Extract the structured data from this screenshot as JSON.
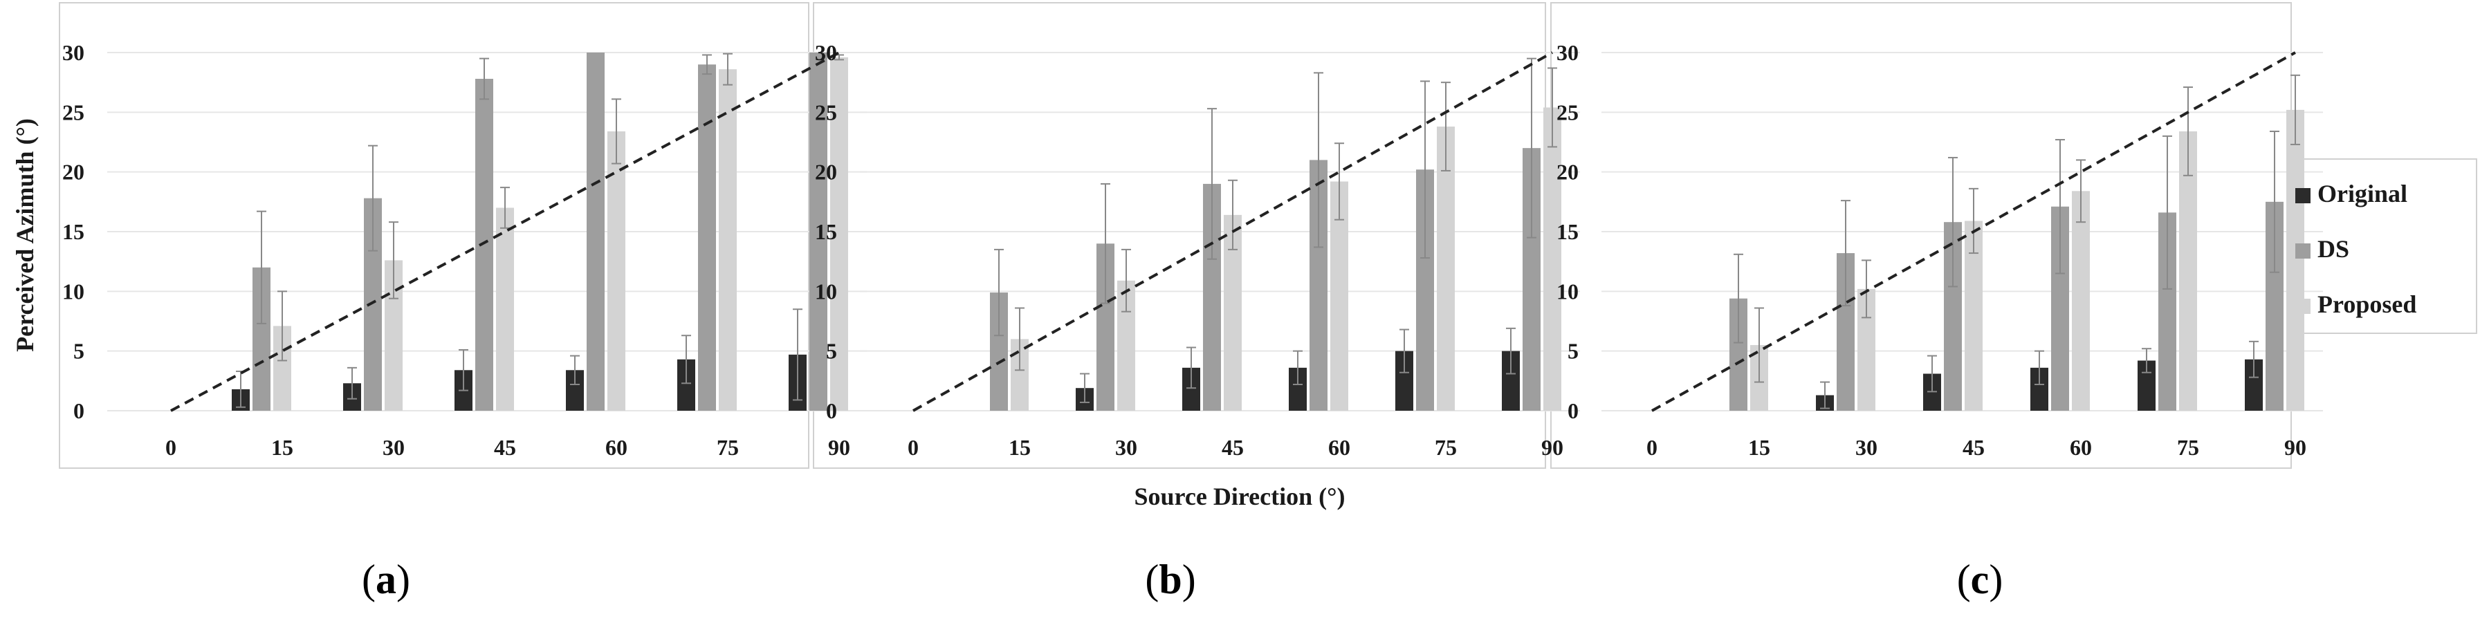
{
  "figure": {
    "y_axis_title": "Perceived Azimuth (°)",
    "x_axis_title": "Source Direction (°)",
    "legend": [
      "Original",
      "DS",
      "Proposed"
    ],
    "panel_labels": [
      {
        "open": "(",
        "letter": "a",
        "close": ")"
      },
      {
        "open": "(",
        "letter": "b",
        "close": ")"
      },
      {
        "open": "(",
        "letter": "c",
        "close": ")"
      }
    ]
  },
  "colors": {
    "Original": "#2b2b2b",
    "DS": "#9e9e9e",
    "Proposed": "#d3d3d3",
    "error_bar": "#888888",
    "grid": "#e6e6e6",
    "reference_line": "#222222",
    "frame": "#d0d0d0"
  },
  "chart_data": [
    {
      "type": "bar",
      "panel": "a",
      "categories": [
        "0",
        "15",
        "30",
        "45",
        "60",
        "75",
        "90"
      ],
      "ylim": [
        0,
        30
      ],
      "yticks": [
        0,
        5,
        10,
        15,
        20,
        25,
        30
      ],
      "reference_line": {
        "from": [
          0,
          0
        ],
        "to": [
          90,
          30
        ],
        "style": "dashed"
      },
      "series": [
        {
          "name": "Original",
          "values": [
            null,
            1.8,
            2.3,
            3.4,
            3.4,
            4.3,
            4.7
          ],
          "errors": [
            null,
            1.5,
            1.3,
            1.7,
            1.2,
            2.0,
            3.8
          ]
        },
        {
          "name": "DS",
          "values": [
            null,
            12.0,
            17.8,
            27.8,
            30.0,
            29.0,
            30.0
          ],
          "errors": [
            null,
            4.7,
            4.4,
            1.7,
            0,
            0.8,
            0
          ]
        },
        {
          "name": "Proposed",
          "values": [
            null,
            7.1,
            12.6,
            17.0,
            23.4,
            28.6,
            29.6
          ],
          "errors": [
            null,
            2.9,
            3.2,
            1.7,
            2.7,
            1.3,
            0.2
          ]
        }
      ]
    },
    {
      "type": "bar",
      "panel": "b",
      "categories": [
        "0",
        "15",
        "30",
        "45",
        "60",
        "75",
        "90"
      ],
      "ylim": [
        0,
        30
      ],
      "yticks": [
        0,
        5,
        10,
        15,
        20,
        25,
        30
      ],
      "reference_line": {
        "from": [
          0,
          0
        ],
        "to": [
          90,
          30
        ],
        "style": "dashed"
      },
      "series": [
        {
          "name": "Original",
          "values": [
            null,
            null,
            1.9,
            3.6,
            3.6,
            5.0,
            5.0
          ],
          "errors": [
            null,
            null,
            1.2,
            1.7,
            1.4,
            1.8,
            1.9
          ]
        },
        {
          "name": "DS",
          "values": [
            null,
            9.9,
            14.0,
            19.0,
            21.0,
            20.2,
            22.0
          ],
          "errors": [
            null,
            3.6,
            5.0,
            6.3,
            7.3,
            7.4,
            7.5
          ]
        },
        {
          "name": "Proposed",
          "values": [
            null,
            6.0,
            10.9,
            16.4,
            19.2,
            23.8,
            25.4
          ],
          "errors": [
            null,
            2.6,
            2.6,
            2.9,
            3.2,
            3.7,
            3.3
          ]
        }
      ]
    },
    {
      "type": "bar",
      "panel": "c",
      "categories": [
        "0",
        "15",
        "30",
        "45",
        "60",
        "75",
        "90"
      ],
      "ylim": [
        0,
        30
      ],
      "yticks": [
        0,
        5,
        10,
        15,
        20,
        25,
        30
      ],
      "reference_line": {
        "from": [
          0,
          0
        ],
        "to": [
          90,
          30
        ],
        "style": "dashed"
      },
      "series": [
        {
          "name": "Original",
          "values": [
            null,
            null,
            1.3,
            3.1,
            3.6,
            4.2,
            4.3
          ],
          "errors": [
            null,
            null,
            1.1,
            1.5,
            1.4,
            1.0,
            1.5
          ]
        },
        {
          "name": "DS",
          "values": [
            null,
            9.4,
            13.2,
            15.8,
            17.1,
            16.6,
            17.5
          ],
          "errors": [
            null,
            3.7,
            4.4,
            5.4,
            5.6,
            6.4,
            5.9
          ]
        },
        {
          "name": "Proposed",
          "values": [
            null,
            5.5,
            10.2,
            15.9,
            18.4,
            23.4,
            25.2
          ],
          "errors": [
            null,
            3.1,
            2.4,
            2.7,
            2.6,
            3.7,
            2.9
          ]
        }
      ]
    }
  ]
}
